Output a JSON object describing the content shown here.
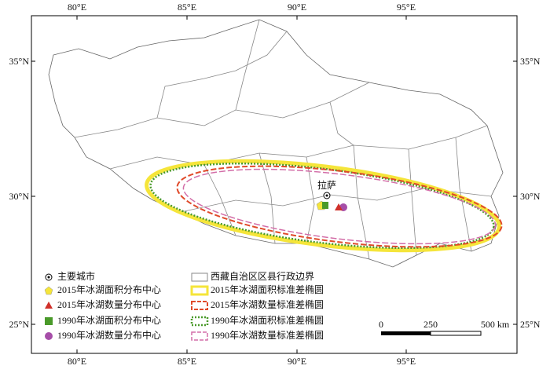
{
  "axes": {
    "top": [
      "80°E",
      "85°E",
      "90°E",
      "95°E"
    ],
    "bottom": [
      "80°E",
      "85°E",
      "90°E",
      "95°E"
    ],
    "left": [
      "35°N",
      "30°N",
      "25°N"
    ],
    "right": [
      "35°N",
      "30°N",
      "25°N"
    ]
  },
  "city": {
    "label": "拉萨"
  },
  "legend": [
    "主要城市",
    "2015年冰湖面积分布中心",
    "2015年冰湖数量分布中心",
    "1990年冰湖面积分布中心",
    "1990年冰湖数量分布中心",
    "西藏自治区区县行政边界",
    "2015年冰湖面积标准差椭圆",
    "2015年冰湖数量标准差椭圆",
    "1990年冰湖面积标准差椭圆",
    "1990年冰湖数量标准差椭圆"
  ],
  "scale_bar": {
    "labels": [
      "0",
      "250",
      "500 km"
    ]
  }
}
